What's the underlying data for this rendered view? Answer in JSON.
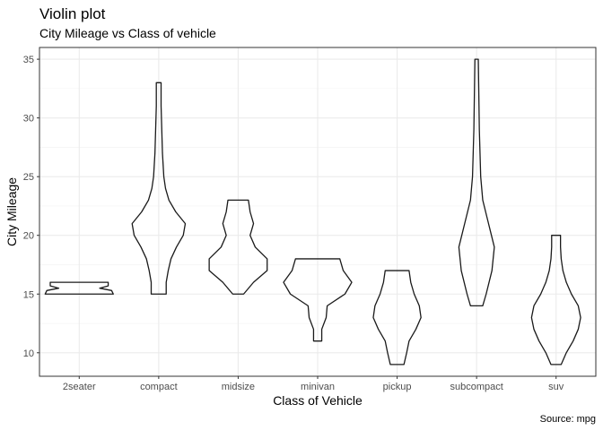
{
  "chart_data": {
    "type": "violin",
    "title": "Violin plot",
    "subtitle": "City Mileage vs Class of vehicle",
    "xlabel": "Class of Vehicle",
    "ylabel": "City Mileage",
    "caption": "Source: mpg",
    "ylim": [
      8,
      36
    ],
    "y_ticks": [
      10,
      15,
      20,
      25,
      30,
      35
    ],
    "grid": true,
    "categories": [
      "2seater",
      "compact",
      "midsize",
      "minivan",
      "pickup",
      "subcompact",
      "suv"
    ],
    "violins": [
      {
        "category": "2seater",
        "min": 15,
        "max": 16,
        "profile": [
          [
            15,
            1.0
          ],
          [
            15.3,
            0.95
          ],
          [
            15.5,
            0.6
          ],
          [
            15.7,
            0.85
          ],
          [
            16,
            0.85
          ]
        ]
      },
      {
        "category": "compact",
        "min": 15,
        "max": 33,
        "profile": [
          [
            15,
            0.22
          ],
          [
            16,
            0.22
          ],
          [
            17,
            0.28
          ],
          [
            18,
            0.36
          ],
          [
            19,
            0.52
          ],
          [
            20,
            0.72
          ],
          [
            21,
            0.78
          ],
          [
            22,
            0.5
          ],
          [
            23,
            0.3
          ],
          [
            24,
            0.2
          ],
          [
            25,
            0.15
          ],
          [
            27,
            0.11
          ],
          [
            29,
            0.09
          ],
          [
            31,
            0.07
          ],
          [
            33,
            0.07
          ]
        ]
      },
      {
        "category": "midsize",
        "min": 15,
        "max": 23,
        "profile": [
          [
            15,
            0.16
          ],
          [
            16,
            0.45
          ],
          [
            17,
            0.85
          ],
          [
            18,
            0.85
          ],
          [
            19,
            0.5
          ],
          [
            20,
            0.35
          ],
          [
            21,
            0.45
          ],
          [
            22,
            0.35
          ],
          [
            23,
            0.3
          ]
        ]
      },
      {
        "category": "minivan",
        "min": 11,
        "max": 18,
        "profile": [
          [
            11,
            0.12
          ],
          [
            12,
            0.12
          ],
          [
            13,
            0.25
          ],
          [
            14,
            0.28
          ],
          [
            15,
            0.8
          ],
          [
            16,
            1.0
          ],
          [
            17,
            0.75
          ],
          [
            18,
            0.65
          ]
        ]
      },
      {
        "category": "pickup",
        "min": 9,
        "max": 17,
        "profile": [
          [
            9,
            0.2
          ],
          [
            10,
            0.28
          ],
          [
            11,
            0.35
          ],
          [
            12,
            0.55
          ],
          [
            13,
            0.7
          ],
          [
            14,
            0.65
          ],
          [
            15,
            0.5
          ],
          [
            16,
            0.4
          ],
          [
            17,
            0.35
          ]
        ]
      },
      {
        "category": "subcompact",
        "min": 14,
        "max": 35,
        "profile": [
          [
            14,
            0.18
          ],
          [
            15,
            0.28
          ],
          [
            17,
            0.45
          ],
          [
            19,
            0.52
          ],
          [
            21,
            0.35
          ],
          [
            23,
            0.18
          ],
          [
            25,
            0.12
          ],
          [
            27,
            0.1
          ],
          [
            29,
            0.08
          ],
          [
            31,
            0.07
          ],
          [
            33,
            0.06
          ],
          [
            35,
            0.05
          ]
        ]
      },
      {
        "category": "suv",
        "min": 9,
        "max": 20,
        "profile": [
          [
            9,
            0.15
          ],
          [
            10,
            0.3
          ],
          [
            11,
            0.5
          ],
          [
            12,
            0.65
          ],
          [
            13,
            0.72
          ],
          [
            14,
            0.65
          ],
          [
            15,
            0.45
          ],
          [
            16,
            0.3
          ],
          [
            17,
            0.2
          ],
          [
            18,
            0.15
          ],
          [
            19,
            0.13
          ],
          [
            20,
            0.13
          ]
        ]
      }
    ]
  }
}
